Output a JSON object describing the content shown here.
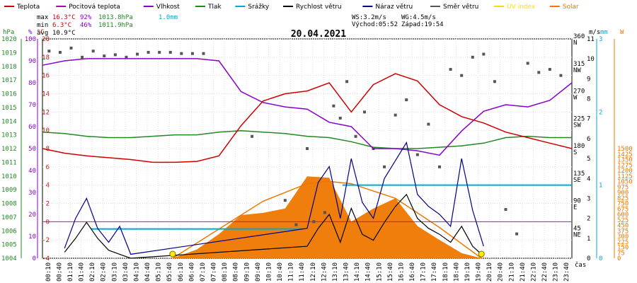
{
  "chart_data": {
    "type": "line",
    "title": "20.04.2021",
    "legend": [
      {
        "name": "Teplota",
        "color": "#cc0000"
      },
      {
        "name": "Pocitová teplota",
        "color": "#b000b0"
      },
      {
        "name": "Vlhkost",
        "color": "#8800cc"
      },
      {
        "name": "Tlak",
        "color": "#228822"
      },
      {
        "name": "Srážky",
        "color": "#00aacc"
      },
      {
        "name": "Rychlost větru",
        "color": "#000000"
      },
      {
        "name": "Náraz větru",
        "color": "#000088"
      },
      {
        "name": "Směr větru",
        "color": "#555555"
      },
      {
        "name": "UV index",
        "color": "#ffdd00"
      },
      {
        "name": "Solar",
        "color": "#ee7700"
      }
    ],
    "stats": {
      "max": {
        "label": "max",
        "temp": "16.3°C",
        "hum": "92%",
        "press": "1013.8hPa",
        "rain": "1.0mm"
      },
      "min": {
        "label": "min",
        "temp": "6.3°C",
        "hum": "46%",
        "press": "1011.9hPa"
      },
      "avg": {
        "label": "avg",
        "temp": "10.9°C"
      }
    },
    "wind_info": {
      "ws": "WS:3.2m/s",
      "wg": "WG:4.5m/s",
      "sunrise": "Východ:05:52",
      "sunset": "Západ:19:54"
    },
    "axes": {
      "hpa_unit": "hPa",
      "pct_unit": "%",
      "temp_unit": "°C",
      "ms_unit": "m/s",
      "mm_unit": "mm",
      "w_unit": "W",
      "hpa_ticks": [
        "1004",
        "1005",
        "1006",
        "1007",
        "1008",
        "1009",
        "1010",
        "1011",
        "1012",
        "1013",
        "1014",
        "1015",
        "1016",
        "1017",
        "1018",
        "1019",
        "1020"
      ],
      "pct_ticks": [
        "0",
        "10",
        "20",
        "30",
        "40",
        "50",
        "60",
        "70",
        "80",
        "90",
        "100"
      ],
      "temp_ticks": [
        "-4",
        "-2",
        "0",
        "2",
        "4",
        "6",
        "8",
        "10",
        "12",
        "14",
        "16",
        "18",
        "20"
      ],
      "dir_ticks": [
        {
          "deg": "45",
          "lbl": "NE"
        },
        {
          "deg": "90",
          "lbl": "E"
        },
        {
          "deg": "135",
          "lbl": "SE"
        },
        {
          "deg": "180",
          "lbl": "S"
        },
        {
          "deg": "225",
          "lbl": "SW"
        },
        {
          "deg": "270",
          "lbl": "W"
        },
        {
          "deg": "315",
          "lbl": "NW"
        },
        {
          "deg": "360",
          "lbl": "N"
        }
      ],
      "ms_ticks": [
        "0",
        "1",
        "2",
        "3",
        "4",
        "5",
        "6",
        "7",
        "8",
        "9",
        "10",
        "11"
      ],
      "mm_ticks": [
        "0",
        "1",
        "2",
        "3"
      ],
      "w_ticks": [
        "0",
        "75",
        "150",
        "225",
        "300",
        "375",
        "450",
        "525",
        "600",
        "675",
        "750",
        "825",
        "900",
        "975",
        "1050",
        "1125",
        "1200",
        "1275",
        "1350",
        "1425",
        "1500"
      ],
      "time_ticks": [
        "00:10",
        "00:40",
        "01:10",
        "01:40",
        "02:10",
        "02:40",
        "03:10",
        "03:40",
        "04:10",
        "04:40",
        "05:10",
        "05:40",
        "06:10",
        "06:40",
        "07:10",
        "07:40",
        "08:10",
        "08:40",
        "09:10",
        "09:40",
        "10:10",
        "10:40",
        "11:10",
        "11:40",
        "12:10",
        "12:40",
        "13:10",
        "13:40",
        "14:10",
        "14:40",
        "15:10",
        "15:40",
        "16:10",
        "16:40",
        "17:10",
        "17:40",
        "18:10",
        "18:40",
        "19:10",
        "19:40",
        "20:10",
        "20:40",
        "21:10",
        "21:40",
        "22:10",
        "22:40",
        "23:10",
        "23:40"
      ],
      "time_label": "čas"
    },
    "series": {
      "temperature": {
        "name": "Teplota",
        "x": [
          0,
          1,
          2,
          3,
          4,
          5,
          6,
          7,
          8,
          9,
          10,
          11,
          12,
          13,
          14,
          15,
          16,
          17,
          18,
          19,
          20,
          21,
          22,
          23,
          24
        ],
        "y": [
          8.0,
          7.5,
          7.2,
          7.0,
          6.8,
          6.5,
          6.5,
          6.6,
          7.2,
          10.5,
          13.2,
          14.0,
          14.3,
          15.2,
          12.0,
          15.0,
          16.2,
          15.4,
          12.8,
          11.5,
          10.8,
          9.8,
          9.2,
          8.6,
          8.0
        ]
      },
      "humidity": {
        "name": "Vlhkost",
        "x": [
          0,
          1,
          2,
          3,
          4,
          5,
          6,
          7,
          8,
          9,
          10,
          11,
          12,
          13,
          14,
          15,
          16,
          17,
          18,
          19,
          20,
          21,
          22,
          23,
          24
        ],
        "y": [
          88,
          90,
          91,
          91,
          91,
          91,
          91,
          91,
          90,
          76,
          71,
          69,
          68,
          62,
          60,
          50,
          50,
          49,
          47,
          58,
          67,
          70,
          69,
          72,
          80
        ]
      },
      "pressure": {
        "name": "Tlak",
        "x": [
          0,
          1,
          2,
          3,
          4,
          5,
          6,
          7,
          8,
          9,
          10,
          11,
          12,
          13,
          14,
          15,
          16,
          17,
          18,
          19,
          20,
          21,
          22,
          23,
          24
        ],
        "y": [
          1013.2,
          1013.1,
          1012.9,
          1012.8,
          1012.8,
          1012.9,
          1013.0,
          1013.0,
          1013.2,
          1013.3,
          1013.2,
          1013.1,
          1012.9,
          1012.8,
          1012.5,
          1012.1,
          1012.0,
          1012.0,
          1012.1,
          1012.2,
          1012.4,
          1012.8,
          1012.9,
          1012.8,
          1012.8
        ]
      },
      "wind_speed": {
        "name": "Rychlost větru",
        "x": [
          1,
          1.5,
          2,
          2.5,
          3,
          3.5,
          4,
          12,
          12.5,
          13,
          13.5,
          14,
          14.5,
          15,
          15.5,
          16,
          16.5,
          17,
          17.5,
          18,
          18.5,
          19,
          19.5,
          20
        ],
        "y": [
          0.3,
          1.0,
          1.8,
          1.0,
          0.4,
          0.2,
          0.0,
          0.6,
          1.5,
          2.2,
          0.8,
          2.5,
          1.2,
          0.9,
          1.8,
          2.6,
          3.2,
          2.0,
          1.5,
          1.2,
          0.8,
          1.6,
          0.6,
          0.1
        ]
      },
      "wind_gust": {
        "name": "Náraz větru",
        "x": [
          1,
          1.5,
          2,
          2.5,
          3,
          3.5,
          4,
          12,
          12.5,
          13,
          13.5,
          14,
          14.5,
          15,
          15.5,
          16,
          16.5,
          17,
          17.5,
          18,
          18.5,
          19,
          19.5,
          20
        ],
        "y": [
          0.5,
          2.0,
          3.0,
          1.5,
          0.8,
          1.6,
          0.2,
          1.5,
          3.8,
          4.6,
          2.0,
          5.0,
          2.8,
          2.0,
          4.0,
          4.9,
          5.8,
          3.2,
          2.6,
          2.2,
          1.6,
          5.0,
          2.4,
          0.6
        ]
      },
      "rain": {
        "name": "Srážky",
        "steps": [
          {
            "x": [
              2.2,
              11.8
            ],
            "mm": 0.4
          },
          {
            "x": [
              13.6,
              24
            ],
            "mm": 1.0
          }
        ]
      },
      "solar": {
        "name": "Solar",
        "x": [
          5.9,
          7,
          8,
          9,
          10,
          11,
          12,
          13,
          14,
          15,
          16,
          17,
          18,
          19,
          19.9
        ],
        "y": [
          0,
          120,
          330,
          590,
          620,
          680,
          1120,
          1100,
          500,
          680,
          820,
          440,
          250,
          70,
          0
        ]
      },
      "solar_max": {
        "x": [
          5.9,
          8,
          10,
          12,
          13,
          14,
          16,
          18,
          19.9
        ],
        "y": [
          0,
          400,
          780,
          1020,
          1050,
          1020,
          820,
          420,
          0
        ]
      },
      "wind_dir": {
        "name": "Směr větru",
        "x": [
          0.3,
          0.8,
          1.3,
          1.8,
          2.3,
          2.8,
          3.3,
          3.8,
          4.3,
          4.8,
          5.3,
          5.8,
          6.3,
          6.8,
          7.3,
          9.5,
          11,
          11.5,
          12,
          12.3,
          12.8,
          13.2,
          13.5,
          13.8,
          14.2,
          14.6,
          15,
          15.5,
          16,
          16.5,
          17,
          17.5,
          18,
          18.5,
          19,
          19.5,
          20,
          20.5,
          21,
          21.5,
          22,
          22.5,
          23,
          23.5
        ],
        "y": [
          340,
          338,
          345,
          330,
          340,
          332,
          334,
          330,
          335,
          338,
          338,
          338,
          336,
          336,
          336,
          200,
          95,
          55,
          180,
          60,
          75,
          250,
          230,
          290,
          200,
          240,
          180,
          150,
          235,
          260,
          170,
          220,
          150,
          310,
          300,
          330,
          335,
          290,
          80,
          40,
          320,
          305,
          310,
          300
        ]
      },
      "uv_index": {
        "name": "UV index",
        "x": [
          5.9,
          19.9
        ],
        "y": [
          0,
          0
        ]
      }
    }
  }
}
